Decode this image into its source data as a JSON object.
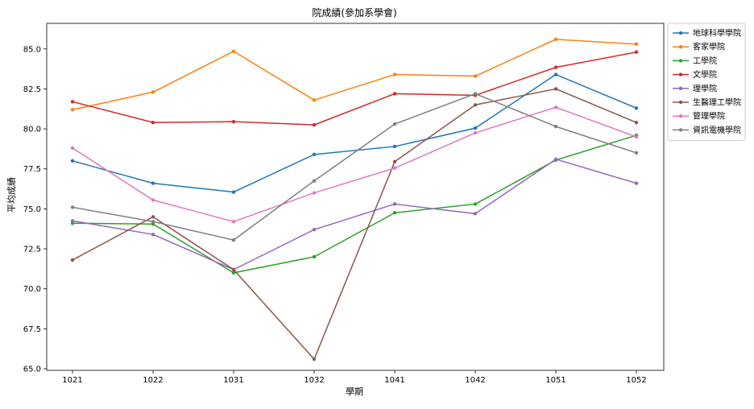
{
  "chart_data": {
    "type": "line",
    "title": "院成績(參加系學會)",
    "xlabel": "學期",
    "ylabel": "平均成績",
    "categories": [
      "1021",
      "1022",
      "1031",
      "1032",
      "1041",
      "1042",
      "1051",
      "1052"
    ],
    "ylim": [
      64.9,
      86.6
    ],
    "yticks": [
      65.0,
      67.5,
      70.0,
      72.5,
      75.0,
      77.5,
      80.0,
      82.5,
      85.0
    ],
    "ytick_labels": [
      "65.0",
      "67.5",
      "70.0",
      "72.5",
      "75.0",
      "77.5",
      "80.0",
      "82.5",
      "85.0"
    ],
    "grid": false,
    "legend_position": "outside-top-right",
    "series": [
      {
        "name": "地球科學學院",
        "color": "#1f77b4",
        "values": [
          78.0,
          76.6,
          76.05,
          78.4,
          78.9,
          80.05,
          83.4,
          81.3
        ]
      },
      {
        "name": "客家學院",
        "color": "#ff7f0e",
        "values": [
          81.2,
          82.3,
          84.85,
          81.8,
          83.4,
          83.3,
          85.6,
          85.3
        ]
      },
      {
        "name": "工學院",
        "color": "#2ca02c",
        "values": [
          74.1,
          74.05,
          71.0,
          72.0,
          74.75,
          75.3,
          78.05,
          79.6
        ]
      },
      {
        "name": "文學院",
        "color": "#d62728",
        "values": [
          81.7,
          80.4,
          80.45,
          80.25,
          82.2,
          82.1,
          83.85,
          84.8
        ]
      },
      {
        "name": "理學院",
        "color": "#9467bd",
        "values": [
          74.25,
          73.4,
          71.2,
          73.7,
          75.3,
          74.7,
          78.1,
          76.6
        ]
      },
      {
        "name": "生醫理工學院",
        "color": "#8c564b",
        "values": [
          71.8,
          74.5,
          71.2,
          65.6,
          77.95,
          81.5,
          82.5,
          80.4
        ]
      },
      {
        "name": "管理學院",
        "color": "#e377c2",
        "values": [
          78.8,
          75.55,
          74.2,
          76.0,
          77.55,
          79.75,
          81.35,
          79.5
        ]
      },
      {
        "name": "資訊電機學院",
        "color": "#7f7f7f",
        "values": [
          75.1,
          74.2,
          73.05,
          76.75,
          80.3,
          82.2,
          80.15,
          78.5
        ]
      }
    ]
  }
}
